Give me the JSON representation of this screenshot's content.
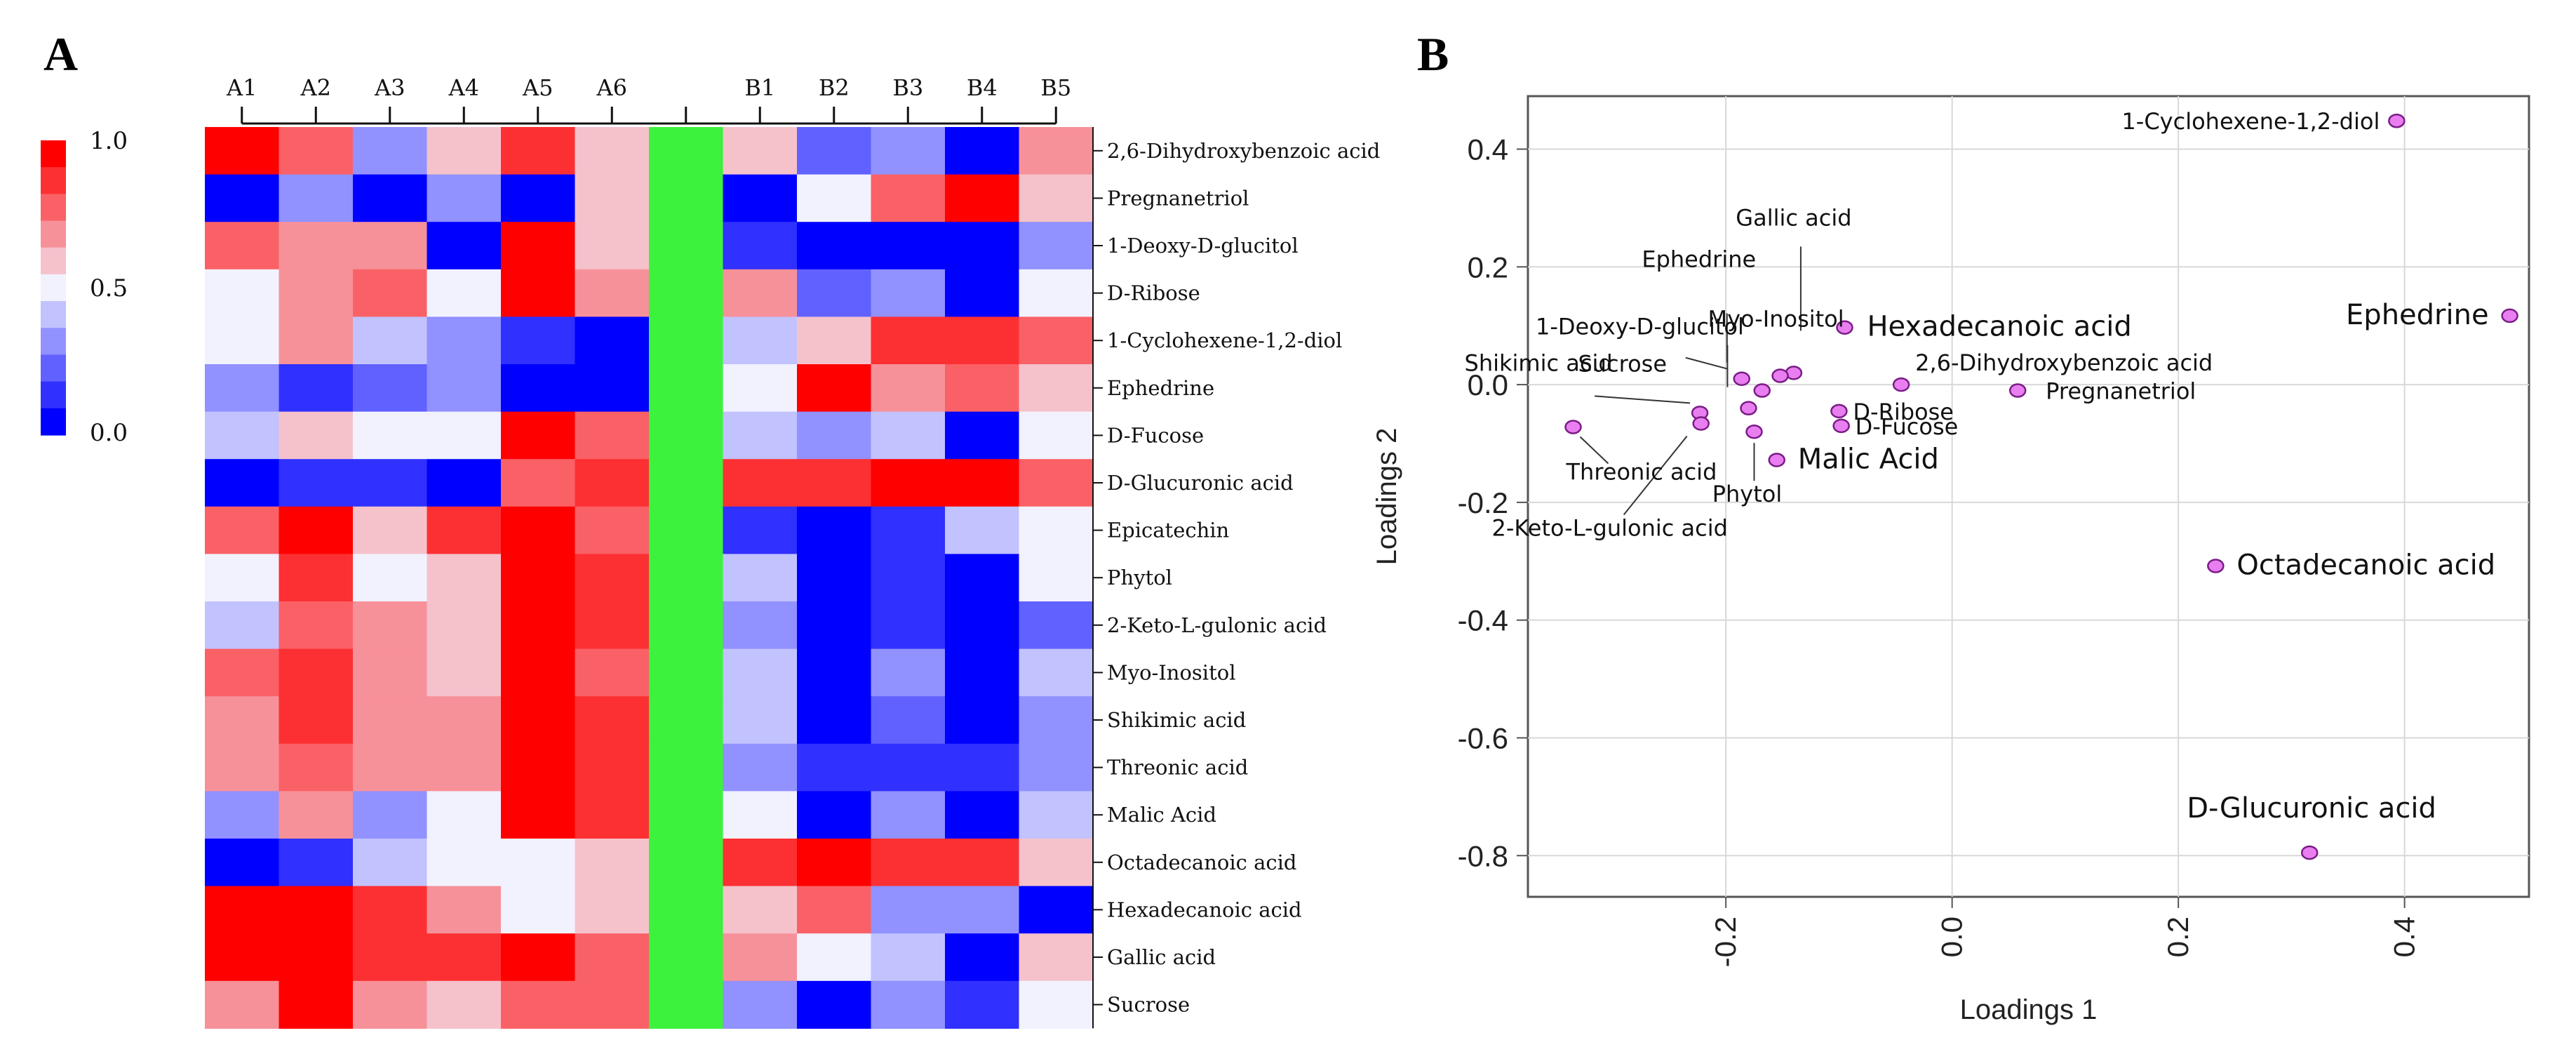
{
  "panel_labels": {
    "a": "A",
    "b": "B"
  },
  "chart_data": [
    {
      "type": "heatmap",
      "title": "",
      "columns": [
        "A1",
        "A2",
        "A3",
        "A4",
        "A5",
        "A6",
        "",
        "B1",
        "B2",
        "B3",
        "B4",
        "B5"
      ],
      "rows": [
        "2,6-Dihydroxybenzoic acid",
        "Pregnanetriol",
        "1-Deoxy-D-glucitol",
        "D-Ribose",
        "1-Cyclohexene-1,2-diol",
        "Ephedrine",
        "D-Fucose",
        "D-Glucuronic acid",
        "Epicatechin",
        "Phytol",
        "2-Keto-L-gulonic acid",
        "Myo-Inositol",
        "Shikimic acid",
        "Threonic acid",
        "Malic Acid",
        "Octadecanoic acid",
        "Hexadecanoic acid",
        "Gallic acid",
        "Sucrose"
      ],
      "values": [
        [
          1.0,
          0.75,
          0.3,
          0.55,
          0.9,
          0.55,
          null,
          0.55,
          0.15,
          0.25,
          0.0,
          0.65
        ],
        [
          0.0,
          0.25,
          0.0,
          0.3,
          0.0,
          0.55,
          null,
          0.0,
          0.5,
          0.75,
          1.0,
          0.55
        ],
        [
          0.75,
          0.65,
          0.65,
          0.0,
          1.0,
          0.55,
          null,
          0.1,
          0.0,
          0.0,
          0.0,
          0.25
        ],
        [
          0.45,
          0.65,
          0.75,
          0.45,
          1.0,
          0.65,
          null,
          0.65,
          0.15,
          0.25,
          0.0,
          0.45
        ],
        [
          0.45,
          0.65,
          0.35,
          0.25,
          0.1,
          0.0,
          null,
          0.35,
          0.55,
          0.85,
          0.9,
          0.8
        ],
        [
          0.25,
          0.1,
          0.15,
          0.25,
          0.0,
          0.0,
          null,
          0.45,
          1.0,
          0.65,
          0.75,
          0.55
        ],
        [
          0.35,
          0.55,
          0.45,
          0.45,
          1.0,
          0.8,
          null,
          0.35,
          0.25,
          0.35,
          0.0,
          0.45
        ],
        [
          0.0,
          0.1,
          0.1,
          0.0,
          0.75,
          0.9,
          null,
          0.85,
          0.9,
          1.0,
          1.0,
          0.8
        ],
        [
          0.75,
          1.0,
          0.55,
          0.85,
          1.0,
          0.75,
          null,
          0.1,
          0.0,
          0.1,
          0.35,
          0.45
        ],
        [
          0.45,
          0.9,
          0.45,
          0.55,
          1.0,
          0.9,
          null,
          0.35,
          0.0,
          0.1,
          0.0,
          0.45
        ],
        [
          0.35,
          0.8,
          0.65,
          0.55,
          1.0,
          0.85,
          null,
          0.25,
          0.0,
          0.05,
          0.0,
          0.15
        ],
        [
          0.75,
          0.9,
          0.65,
          0.55,
          1.0,
          0.8,
          null,
          0.35,
          0.0,
          0.25,
          0.0,
          0.35
        ],
        [
          0.65,
          0.85,
          0.65,
          0.65,
          1.0,
          0.85,
          null,
          0.35,
          0.0,
          0.15,
          0.0,
          0.3
        ],
        [
          0.65,
          0.75,
          0.65,
          0.65,
          1.0,
          0.85,
          null,
          0.25,
          0.05,
          0.05,
          0.05,
          0.25
        ],
        [
          0.25,
          0.65,
          0.25,
          0.45,
          1.0,
          0.85,
          null,
          0.45,
          0.0,
          0.25,
          0.0,
          0.35
        ],
        [
          0.0,
          0.1,
          0.35,
          0.45,
          0.45,
          0.55,
          null,
          0.9,
          1.0,
          0.85,
          0.9,
          0.55
        ],
        [
          1.0,
          1.0,
          0.9,
          0.65,
          0.45,
          0.55,
          null,
          0.55,
          0.75,
          0.25,
          0.25,
          0.0
        ],
        [
          1.0,
          1.0,
          0.85,
          0.85,
          1.0,
          0.75,
          null,
          0.65,
          0.45,
          0.35,
          0.0,
          0.55
        ],
        [
          0.65,
          1.0,
          0.65,
          0.55,
          0.75,
          0.75,
          null,
          0.25,
          0.0,
          0.25,
          0.1,
          0.45
        ]
      ],
      "control_column_color": "#3cf23c",
      "colorbar": {
        "min": 0.0,
        "max": 1.0,
        "ticks": [
          "1.0",
          "0.5",
          "0.0"
        ],
        "low_color": "#0000ff",
        "mid_color": "#f2f2ff",
        "high_color": "#ff0000"
      }
    },
    {
      "type": "scatter",
      "title": "",
      "xlabel": "Loadings 1",
      "ylabel": "Loadings 2",
      "xlim": [
        -0.375,
        0.51
      ],
      "ylim": [
        -0.87,
        0.49
      ],
      "xticks": [
        "-0.2",
        "0.0",
        "0.2",
        "0.4"
      ],
      "yticks": [
        "0.4",
        "0.2",
        "0.0",
        "-0.2",
        "-0.4",
        "-0.6",
        "-0.8"
      ],
      "grid": true,
      "marker_color": "#e87ef0",
      "points": [
        {
          "label": "1-Cyclohexene-1,2-diol",
          "x": 0.393,
          "y": 0.448
        },
        {
          "label": "Ephedrine",
          "x": 0.493,
          "y": 0.117
        },
        {
          "label": "Hexadecanoic acid",
          "x": -0.095,
          "y": 0.097
        },
        {
          "label": "Gallic acid",
          "x": -0.14,
          "y": 0.02
        },
        {
          "label": "Myo-Inositol",
          "x": -0.152,
          "y": 0.015
        },
        {
          "label": "Ephedrine",
          "x": -0.168,
          "y": -0.01
        },
        {
          "label": "1-Deoxy-D-glucitol",
          "x": -0.18,
          "y": -0.04
        },
        {
          "label": "Sucrose",
          "x": -0.186,
          "y": 0.01
        },
        {
          "label": "2,6-Dihydroxybenzoic acid",
          "x": -0.045,
          "y": 0.0
        },
        {
          "label": "Pregnanetriol",
          "x": 0.058,
          "y": -0.01
        },
        {
          "label": "D-Ribose",
          "x": -0.1,
          "y": -0.045
        },
        {
          "label": "D-Fucose",
          "x": -0.098,
          "y": -0.07
        },
        {
          "label": "Shikimic acid",
          "x": -0.223,
          "y": -0.048
        },
        {
          "label": "2-Keto-L-gulonic acid",
          "x": -0.222,
          "y": -0.066
        },
        {
          "label": "Threonic acid",
          "x": -0.335,
          "y": -0.072
        },
        {
          "label": "Phytol",
          "x": -0.175,
          "y": -0.08
        },
        {
          "label": "Malic Acid",
          "x": -0.155,
          "y": -0.128
        },
        {
          "label": "Octadecanoic acid",
          "x": 0.233,
          "y": -0.308
        },
        {
          "label": "D-Glucuronic acid",
          "x": 0.316,
          "y": -0.795
        }
      ]
    }
  ]
}
